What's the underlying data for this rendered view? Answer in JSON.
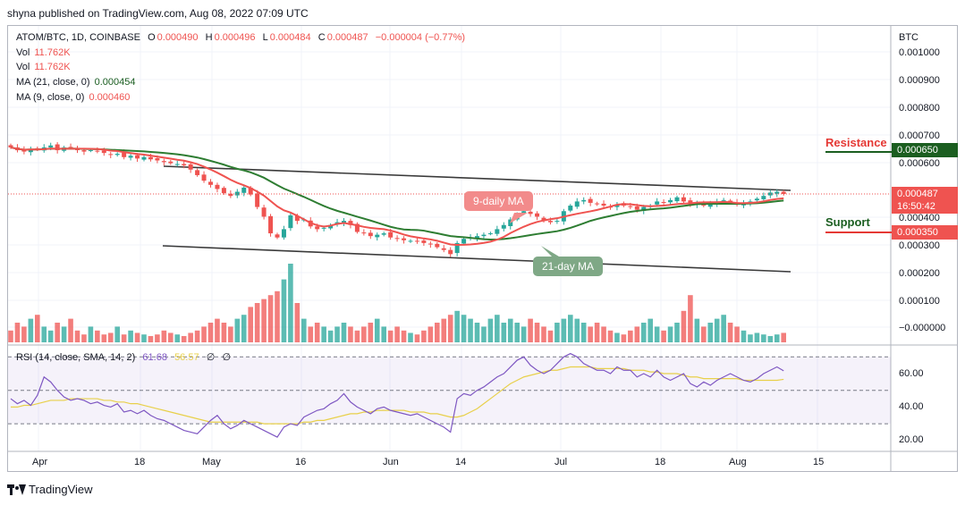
{
  "publisher_line": "shyna published on TradingView.com, Aug 08, 2022 07:09 UTC",
  "legend": {
    "symbol": "ATOM/BTC, 1D, COINBASE",
    "o_label": "O",
    "o": "0.000490",
    "h_label": "H",
    "h": "0.000496",
    "l_label": "L",
    "l": "0.000484",
    "c_label": "C",
    "c": "0.000487",
    "change": "−0.000004 (−0.77%)",
    "vol1_label": "Vol",
    "vol1": "11.762K",
    "vol2_label": "Vol",
    "vol2": "11.762K",
    "ma21_label": "MA (21, close, 0)",
    "ma21": "0.000454",
    "ma9_label": "MA (9, close, 0)",
    "ma9": "0.000460",
    "rsi_label": "RSI (14, close, SMA, 14, 2)",
    "rsi": "61.68",
    "rsi_sma": "56.57",
    "rsi_x1": "∅",
    "rsi_x2": "∅"
  },
  "axis": {
    "currency": "BTC",
    "price_ticks": [
      "0.001000",
      "0.000900",
      "0.000800",
      "0.000700",
      "0.000600",
      "0.000400",
      "0.000300",
      "0.000200",
      "0.000100",
      "−0.000000"
    ],
    "rsi_ticks": [
      "60.00",
      "40.00",
      "20.00"
    ],
    "x_ticks": [
      "Apr",
      "18",
      "May",
      "16",
      "Jun",
      "14",
      "Jul",
      "18",
      "Aug",
      "15"
    ]
  },
  "price_tags": {
    "current": "0.000487",
    "countdown": "16:50:42",
    "resistance": "0.000650",
    "support": "0.000350"
  },
  "annotations": {
    "resistance_label": "Resistance",
    "support_label": "Support",
    "ma9_bubble": "9-daily MA",
    "ma21_bubble": "21-day MA"
  },
  "brand": "TradingView",
  "colors": {
    "up": "#26a69a",
    "down": "#ef5350",
    "ma9": "#ef5350",
    "ma21": "#2e7d32",
    "rsi": "#7e57c2",
    "rsi_sma": "#e8d04a",
    "trend": "#3a3a3a"
  },
  "chart_data": {
    "type": "candlestick",
    "price_range": [
      -3e-05,
      0.00105
    ],
    "rsi_range": [
      15,
      75
    ],
    "closes": [
      0.000655,
      0.000645,
      0.00064,
      0.00065,
      0.000648,
      0.000655,
      0.000662,
      0.000645,
      0.000655,
      0.000655,
      0.000645,
      0.00064,
      0.000645,
      0.000642,
      0.000635,
      0.000628,
      0.000632,
      0.00062,
      0.000625,
      0.000615,
      0.00062,
      0.000612,
      0.000608,
      0.000602,
      0.000598,
      0.000595,
      0.00059,
      0.000575,
      0.000555,
      0.000535,
      0.00052,
      0.000505,
      0.00049,
      0.00048,
      0.000495,
      0.00051,
      0.000485,
      0.00044,
      0.000405,
      0.000345,
      0.00033,
      0.00036,
      0.00041,
      0.00039,
      0.000395,
      0.00037,
      0.00036,
      0.000365,
      0.000375,
      0.000385,
      0.00039,
      0.000375,
      0.00035,
      0.000345,
      0.000335,
      0.00034,
      0.000345,
      0.00033,
      0.000325,
      0.00032,
      0.000318,
      0.000315,
      0.00031,
      0.000305,
      0.000295,
      0.000285,
      0.00027,
      0.00031,
      0.000325,
      0.00033,
      0.000335,
      0.00034,
      0.000345,
      0.00036,
      0.000375,
      0.000395,
      0.000415,
      0.000425,
      0.000415,
      0.000405,
      0.00039,
      0.000385,
      0.00039,
      0.000425,
      0.000445,
      0.00046,
      0.000465,
      0.000455,
      0.00045,
      0.000445,
      0.00044,
      0.00045,
      0.000445,
      0.00044,
      0.00043,
      0.00044,
      0.000445,
      0.00046,
      0.000455,
      0.000465,
      0.000475,
      0.00046,
      0.00045,
      0.000455,
      0.000445,
      0.00045,
      0.00046,
      0.000465,
      0.000455,
      0.00045,
      0.000455,
      0.00046,
      0.00047,
      0.00048,
      0.000492,
      0.000495,
      0.000487
    ],
    "volume_scale": [
      0.15,
      0.25,
      0.2,
      0.3,
      0.35,
      0.2,
      0.15,
      0.25,
      0.2,
      0.3,
      0.15,
      0.1,
      0.2,
      0.15,
      0.1,
      0.12,
      0.2,
      0.1,
      0.15,
      0.12,
      0.1,
      0.08,
      0.1,
      0.15,
      0.12,
      0.1,
      0.08,
      0.12,
      0.15,
      0.2,
      0.25,
      0.3,
      0.25,
      0.2,
      0.3,
      0.35,
      0.45,
      0.5,
      0.55,
      0.6,
      0.65,
      0.8,
      1.0,
      0.5,
      0.3,
      0.2,
      0.25,
      0.2,
      0.15,
      0.2,
      0.25,
      0.2,
      0.15,
      0.2,
      0.25,
      0.3,
      0.2,
      0.15,
      0.2,
      0.15,
      0.12,
      0.1,
      0.15,
      0.2,
      0.25,
      0.3,
      0.35,
      0.4,
      0.35,
      0.3,
      0.25,
      0.2,
      0.3,
      0.35,
      0.25,
      0.3,
      0.25,
      0.2,
      0.3,
      0.25,
      0.2,
      0.15,
      0.25,
      0.3,
      0.35,
      0.3,
      0.25,
      0.2,
      0.25,
      0.2,
      0.15,
      0.12,
      0.1,
      0.15,
      0.2,
      0.25,
      0.3,
      0.2,
      0.15,
      0.2,
      0.25,
      0.4,
      0.6,
      0.3,
      0.2,
      0.25,
      0.3,
      0.35,
      0.25,
      0.2,
      0.15,
      0.1,
      0.12,
      0.1,
      0.08,
      0.1,
      0.12,
      0.08,
      0.1
    ],
    "rsi": [
      45,
      42,
      44,
      41,
      47,
      58,
      55,
      50,
      46,
      44,
      45,
      44,
      42,
      43,
      41,
      40,
      42,
      37,
      38,
      36,
      38,
      35,
      33,
      32,
      30,
      28,
      26,
      25,
      24,
      28,
      32,
      35,
      30,
      27,
      29,
      32,
      30,
      28,
      26,
      24,
      22,
      28,
      30,
      29,
      34,
      36,
      38,
      39,
      42,
      44,
      48,
      43,
      40,
      38,
      36,
      39,
      40,
      38,
      37,
      36,
      35,
      36,
      34,
      32,
      30,
      28,
      25,
      45,
      48,
      47,
      50,
      52,
      55,
      58,
      60,
      64,
      68,
      70,
      65,
      62,
      60,
      62,
      66,
      70,
      72,
      70,
      66,
      64,
      62,
      62,
      60,
      64,
      62,
      62,
      58,
      60,
      58,
      62,
      58,
      56,
      58,
      60,
      54,
      52,
      55,
      53,
      56,
      58,
      60,
      58,
      56,
      55,
      57,
      60,
      62,
      64,
      61.68
    ],
    "rsi_sma": [
      40,
      40,
      41,
      41,
      42,
      43,
      44,
      44,
      44,
      45,
      45,
      45,
      45,
      45,
      44,
      44,
      43,
      43,
      42,
      42,
      41,
      40,
      39,
      38,
      37,
      36,
      35,
      34,
      33,
      32,
      31,
      31,
      31,
      31,
      31,
      31,
      31,
      31,
      30,
      30,
      30,
      30,
      30,
      30,
      31,
      31,
      32,
      32,
      33,
      34,
      35,
      36,
      36,
      37,
      37,
      38,
      38,
      38,
      38,
      38,
      37,
      37,
      37,
      36,
      36,
      35,
      34,
      34,
      35,
      37,
      39,
      42,
      45,
      48,
      51,
      54,
      56,
      58,
      59,
      60,
      61,
      62,
      62,
      63,
      64,
      64,
      64,
      64,
      63,
      63,
      63,
      63,
      63,
      62,
      62,
      62,
      61,
      61,
      60,
      60,
      60,
      59,
      58,
      58,
      57,
      57,
      57,
      57,
      57,
      57,
      56,
      56,
      56,
      56,
      56,
      56,
      56.57
    ]
  }
}
